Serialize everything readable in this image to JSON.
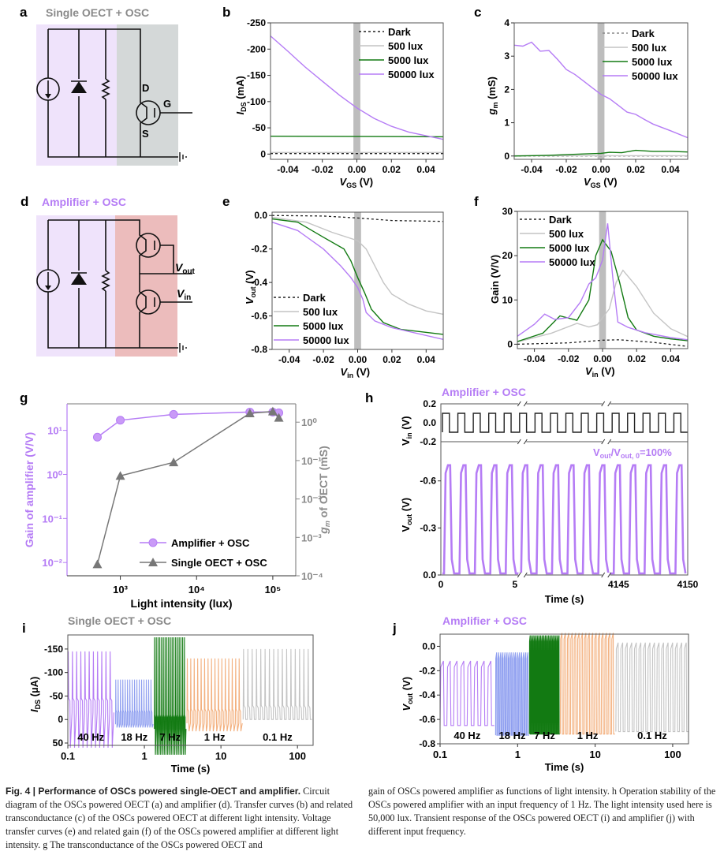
{
  "colors": {
    "dark": "#222222",
    "lux500": "#c4c4c4",
    "lux5000": "#127a12",
    "lux50000": "#b57cf5",
    "purple_text": "#b57cf5",
    "gray_text": "#8a8a8a",
    "osc_bg": "#efe3fb",
    "oect_bg": "#d4d8d8",
    "amp_bg": "#ecbcbc",
    "blue": "#8f9ff0",
    "orange": "#f3b07e",
    "shade": "#bdbdbd",
    "single_marker": "#777777"
  },
  "panels": {
    "a": {
      "label": "a",
      "title": "Single OECT + OSC",
      "pins": {
        "D": "D",
        "G": "G",
        "S": "S"
      }
    },
    "d": {
      "label": "d",
      "title": "Amplifier + OSC",
      "vout": "V",
      "vout_sub": "out",
      "vin": "V",
      "vin_sub": "in"
    }
  },
  "chart_data": [
    {
      "id": "b",
      "label": "b",
      "type": "line",
      "ylabel": "I",
      "ylabel_sub": "DS",
      "ylabel_unit": " (mA)",
      "xlabel": "V",
      "xlabel_sub": "GS",
      "xlabel_unit": " (V)",
      "xlim": [
        -0.05,
        0.05
      ],
      "ylim": [
        10,
        -250
      ],
      "y_inverted": true,
      "xticks": [
        "-0.04",
        "-0.02",
        "0.00",
        "0.02",
        "0.04"
      ],
      "xtick_values": [
        -0.04,
        -0.02,
        0,
        0.02,
        0.04
      ],
      "yticks": [
        "-250",
        "-200",
        "-150",
        "-100",
        "-50",
        "0"
      ],
      "ytick_values": [
        -250,
        -200,
        -150,
        -100,
        -50,
        0
      ],
      "shade_x": [
        -0.002,
        0.002
      ],
      "legend": "top-right",
      "series": [
        {
          "name": "Dark",
          "style": "dotted",
          "color_key": "dark",
          "x": [
            -0.05,
            0.05
          ],
          "y": [
            -1,
            -1
          ]
        },
        {
          "name": "500 lux",
          "style": "solid",
          "color_key": "lux500",
          "x": [
            -0.05,
            0.05
          ],
          "y": [
            -3,
            -3
          ]
        },
        {
          "name": "5000 lux",
          "style": "solid",
          "color_key": "lux5000",
          "x": [
            -0.05,
            0.05
          ],
          "y": [
            -34,
            -33
          ]
        },
        {
          "name": "50000 lux",
          "style": "solid",
          "color_key": "lux50000",
          "x": [
            -0.05,
            -0.04,
            -0.03,
            -0.02,
            -0.01,
            0,
            0.01,
            0.02,
            0.03,
            0.04,
            0.05
          ],
          "y": [
            -225,
            -196,
            -166,
            -139,
            -112,
            -88,
            -68,
            -53,
            -42,
            -35,
            -28
          ]
        }
      ]
    },
    {
      "id": "c",
      "label": "c",
      "type": "line",
      "ylabel": "g",
      "ylabel_sub": "m",
      "ylabel_unit": " (mS)",
      "xlabel": "V",
      "xlabel_sub": "GS",
      "xlabel_unit": " (V)",
      "xlim": [
        -0.05,
        0.05
      ],
      "ylim": [
        -0.1,
        4
      ],
      "xticks": [
        "-0.04",
        "-0.02",
        "0.00",
        "0.02",
        "0.04"
      ],
      "xtick_values": [
        -0.04,
        -0.02,
        0,
        0.02,
        0.04
      ],
      "yticks": [
        "0",
        "1",
        "2",
        "3",
        "4"
      ],
      "ytick_values": [
        0,
        1,
        2,
        3,
        4
      ],
      "shade_x": [
        -0.002,
        0.002
      ],
      "legend": "top-right",
      "series": [
        {
          "name": "Dark",
          "style": "dotted",
          "color_key": "gray_text",
          "x": [
            -0.05,
            0.05
          ],
          "y": [
            0,
            0
          ]
        },
        {
          "name": "500 lux",
          "style": "solid",
          "color_key": "lux500",
          "x": [
            -0.05,
            0.05
          ],
          "y": [
            0.01,
            0.01
          ]
        },
        {
          "name": "5000 lux",
          "style": "solid",
          "color_key": "lux5000",
          "x": [
            -0.05,
            -0.03,
            -0.01,
            0,
            0.005,
            0.012,
            0.02,
            0.03,
            0.04,
            0.05
          ],
          "y": [
            0.0,
            0.02,
            0.06,
            0.08,
            0.11,
            0.1,
            0.17,
            0.14,
            0.14,
            0.12
          ]
        },
        {
          "name": "50000 lux",
          "style": "solid",
          "color_key": "lux50000",
          "x": [
            -0.05,
            -0.045,
            -0.04,
            -0.035,
            -0.03,
            -0.025,
            -0.02,
            -0.015,
            -0.01,
            -0.005,
            0,
            0.005,
            0.01,
            0.015,
            0.02,
            0.025,
            0.03,
            0.04,
            0.05
          ],
          "y": [
            3.33,
            3.3,
            3.42,
            3.15,
            3.17,
            2.9,
            2.6,
            2.45,
            2.25,
            2.05,
            1.85,
            1.72,
            1.52,
            1.32,
            1.25,
            1.1,
            0.96,
            0.76,
            0.55
          ]
        }
      ]
    },
    {
      "id": "e",
      "label": "e",
      "type": "line",
      "ylabel": "V",
      "ylabel_sub": "out",
      "ylabel_unit": " (V)",
      "xlabel": "V",
      "xlabel_sub": "in",
      "xlabel_unit": " (V)",
      "xlim": [
        -0.05,
        0.05
      ],
      "ylim": [
        -0.8,
        0.02
      ],
      "xticks": [
        "-0.04",
        "-0.02",
        "0.00",
        "0.02",
        "0.04"
      ],
      "xtick_values": [
        -0.04,
        -0.02,
        0,
        0.02,
        0.04
      ],
      "yticks": [
        "0.0",
        "-0.2",
        "-0.4",
        "-0.6",
        "-0.8"
      ],
      "ytick_values": [
        0,
        -0.2,
        -0.4,
        -0.6,
        -0.8
      ],
      "shade_x": [
        -0.002,
        0.002
      ],
      "legend": "bottom-left",
      "series": [
        {
          "name": "Dark",
          "style": "dotted",
          "color_key": "dark",
          "x": [
            -0.05,
            -0.02,
            0,
            0.02,
            0.05
          ],
          "y": [
            0,
            -0.003,
            -0.015,
            -0.03,
            -0.035
          ]
        },
        {
          "name": "500 lux",
          "style": "solid",
          "color_key": "lux500",
          "x": [
            -0.05,
            -0.03,
            -0.015,
            0,
            0.005,
            0.01,
            0.015,
            0.02,
            0.03,
            0.04,
            0.05
          ],
          "y": [
            -0.01,
            -0.04,
            -0.1,
            -0.15,
            -0.2,
            -0.3,
            -0.4,
            -0.47,
            -0.53,
            -0.57,
            -0.59
          ]
        },
        {
          "name": "5000 lux",
          "style": "solid",
          "color_key": "lux5000",
          "x": [
            -0.05,
            -0.035,
            -0.02,
            -0.008,
            -0.004,
            0,
            0.004,
            0.008,
            0.015,
            0.025,
            0.05
          ],
          "y": [
            -0.02,
            -0.04,
            -0.13,
            -0.2,
            -0.27,
            -0.37,
            -0.46,
            -0.56,
            -0.64,
            -0.68,
            -0.71
          ]
        },
        {
          "name": "50000 lux",
          "style": "solid",
          "color_key": "lux50000",
          "x": [
            -0.05,
            -0.035,
            -0.02,
            -0.01,
            -0.004,
            0,
            0.003,
            0.005,
            0.01,
            0.02,
            0.05
          ],
          "y": [
            -0.04,
            -0.09,
            -0.2,
            -0.3,
            -0.37,
            -0.43,
            -0.5,
            -0.58,
            -0.63,
            -0.67,
            -0.74
          ]
        }
      ]
    },
    {
      "id": "f",
      "label": "f",
      "type": "line",
      "ylabel": "Gain (V/V)",
      "ylabel_sub": "",
      "ylabel_unit": "",
      "xlabel": "V",
      "xlabel_sub": "in",
      "xlabel_unit": " (V)",
      "xlim": [
        -0.05,
        0.05
      ],
      "ylim": [
        -1,
        30
      ],
      "xticks": [
        "-0.04",
        "-0.02",
        "0.00",
        "0.02",
        "0.04"
      ],
      "xtick_values": [
        -0.04,
        -0.02,
        0,
        0.02,
        0.04
      ],
      "yticks": [
        "0",
        "10",
        "20",
        "30"
      ],
      "ytick_values": [
        0,
        10,
        20,
        30
      ],
      "shade_x": [
        -0.002,
        0.002
      ],
      "legend": "top-left",
      "series": [
        {
          "name": "Dark",
          "style": "dotted",
          "color_key": "dark",
          "x": [
            -0.05,
            -0.02,
            0,
            0.01,
            0.03,
            0.05
          ],
          "y": [
            0,
            0.3,
            0.9,
            1.0,
            0.4,
            -0.5
          ]
        },
        {
          "name": "500 lux",
          "style": "solid",
          "color_key": "lux500",
          "x": [
            -0.05,
            -0.03,
            -0.015,
            -0.008,
            -0.003,
            0.004,
            0.008,
            0.012,
            0.02,
            0.03,
            0.04,
            0.05
          ],
          "y": [
            0.5,
            2.5,
            4.7,
            3.9,
            4.4,
            8,
            14,
            16.7,
            13,
            7,
            3.5,
            1.7
          ]
        },
        {
          "name": "5000 lux",
          "style": "solid",
          "color_key": "lux5000",
          "x": [
            -0.05,
            -0.035,
            -0.025,
            -0.015,
            -0.008,
            -0.004,
            0,
            0.005,
            0.01,
            0.015,
            0.02,
            0.03,
            0.04,
            0.05
          ],
          "y": [
            0.6,
            2.5,
            6.4,
            5.4,
            10,
            20,
            23.6,
            21,
            14,
            6,
            3.2,
            1.8,
            1.2,
            0.8
          ]
        },
        {
          "name": "50000 lux",
          "style": "solid",
          "color_key": "lux50000",
          "x": [
            -0.05,
            -0.04,
            -0.034,
            -0.028,
            -0.02,
            -0.013,
            -0.008,
            -0.004,
            0,
            0.003,
            0.006,
            0.009,
            0.015,
            0.025,
            0.04,
            0.05
          ],
          "y": [
            1.8,
            4.5,
            6.8,
            5.6,
            6,
            9.5,
            13.6,
            15,
            19,
            27.3,
            15,
            5,
            3.8,
            2.6,
            1.5,
            1
          ]
        }
      ]
    },
    {
      "id": "g",
      "label": "g",
      "type": "line",
      "xscale": "log",
      "yscale": "log",
      "xlabel": "Light intensity (lux)",
      "ylabel_left": "Gain of amplifier (V/V)",
      "ylabel_right_italic": "g",
      "ylabel_right_sub": "m",
      "ylabel_right": " of OECT (mS)",
      "xlim": [
        200,
        200000
      ],
      "ylim_left": [
        0.005,
        40
      ],
      "ylim_right": [
        0.0001,
        3
      ],
      "xticks": [
        "10³",
        "10⁴",
        "10⁵"
      ],
      "xtick_values": [
        1000,
        10000,
        100000
      ],
      "yticks_left": [
        "10¹",
        "10⁰",
        "10⁻¹",
        "10⁻²"
      ],
      "ytick_left_values": [
        10,
        1,
        0.1,
        0.01
      ],
      "yticks_right": [
        "10⁰",
        "10⁻¹",
        "10⁻²",
        "10⁻³",
        "10⁻⁴"
      ],
      "ytick_right_values": [
        1,
        0.1,
        0.01,
        0.001,
        0.0001
      ],
      "legend": "bottom-right",
      "series": [
        {
          "name": "Amplifier + OSC",
          "axis": "left",
          "marker": "circle",
          "color_key": "lux50000",
          "x": [
            500,
            1000,
            5000,
            50000,
            100000,
            120000
          ],
          "y": [
            7,
            17,
            23,
            26,
            26,
            25
          ]
        },
        {
          "name": "Single OECT + OSC",
          "axis": "right",
          "marker": "triangle",
          "color_key": "single_marker",
          "x": [
            500,
            1000,
            5000,
            50000,
            100000,
            120000
          ],
          "y": [
            0.0002,
            0.04,
            0.09,
            1.7,
            1.9,
            1.3
          ]
        }
      ]
    },
    {
      "id": "h",
      "label": "h",
      "type": "line",
      "title": "Amplifier + OSC",
      "annotation": "V",
      "annotation_sub1": "out",
      "annotation_mid": "/V",
      "annotation_sub2": "out, 0",
      "annotation_tail": "=100%",
      "top": {
        "ylabel": "V",
        "ylabel_sub": "in",
        "ylabel_unit": " (V)",
        "yticks": [
          "0.2",
          "0.0",
          "-0.2"
        ],
        "ytick_values": [
          0.2,
          0,
          -0.2
        ],
        "ylim": [
          -0.2,
          0.2
        ],
        "high": 0.1,
        "low": -0.1
      },
      "bottom": {
        "ylabel": "V",
        "ylabel_sub": "out",
        "ylabel_unit": " (V)",
        "yticks": [
          "-0.6",
          "-0.3",
          "0.0"
        ],
        "ytick_values": [
          -0.6,
          -0.3,
          0
        ],
        "ylim": [
          0,
          -0.85
        ],
        "high": -0.7,
        "low": -0.01
      },
      "xlabel": "Time (s)",
      "xticks": [
        "0",
        "5",
        "4145",
        "4150"
      ],
      "frequency_hz": 1,
      "cycles": 16
    },
    {
      "id": "i",
      "label": "i",
      "type": "line",
      "title": "Single OECT + OSC",
      "xscale": "log",
      "xlim": [
        0.1,
        160
      ],
      "ylim": [
        55,
        -180
      ],
      "ylabel": "I",
      "ylabel_sub": "DS",
      "ylabel_unit": " (µA)",
      "xlabel": "Time (s)",
      "xticks": [
        "0.1",
        "1",
        "10",
        "100"
      ],
      "xtick_values": [
        0.1,
        1,
        10,
        100
      ],
      "yticks": [
        "-150",
        "-100",
        "-50",
        "0",
        "50"
      ],
      "ytick_values": [
        -150,
        -100,
        -50,
        0,
        50
      ],
      "segments": [
        {
          "name": "40 Hz",
          "color_key": "lux50000",
          "t": [
            0.1,
            0.4
          ],
          "peak": -145,
          "trough": 60,
          "base": -15,
          "n": 11
        },
        {
          "name": "18 Hz",
          "color_key": "blue",
          "t": [
            0.42,
            1.3
          ],
          "peak": -85,
          "trough": 17,
          "base": 10,
          "n": 16
        },
        {
          "name": "7 Hz",
          "color_key": "lux5000",
          "t": [
            1.35,
            3.5
          ],
          "peak": -175,
          "trough": 75,
          "base": 20,
          "n": 18
        },
        {
          "name": "1 Hz",
          "color_key": "orange",
          "t": [
            3.6,
            19
          ],
          "peak": -130,
          "trough": 25,
          "base": 8,
          "n": 16
        },
        {
          "name": "0.1 Hz",
          "color_key": "lux500",
          "t": [
            19.5,
            155
          ],
          "peak": -150,
          "trough": 0,
          "base": 0,
          "n": 16
        }
      ]
    },
    {
      "id": "j",
      "label": "j",
      "type": "line",
      "title": "Amplifier + OSC",
      "xscale": "log",
      "xlim": [
        0.1,
        160
      ],
      "ylim": [
        -0.8,
        0.1
      ],
      "ylabel": "V",
      "ylabel_sub": "out",
      "ylabel_unit": " (V)",
      "xlabel": "Time (s)",
      "xticks": [
        "0.1",
        "1",
        "10",
        "100"
      ],
      "xtick_values": [
        0.1,
        1,
        10,
        100
      ],
      "yticks": [
        "0.0",
        "-0.2",
        "-0.4",
        "-0.6",
        "-0.8"
      ],
      "ytick_values": [
        0,
        -0.2,
        -0.4,
        -0.6,
        -0.8
      ],
      "segments": [
        {
          "name": "40 Hz",
          "color_key": "lux50000",
          "t": [
            0.1,
            0.5
          ],
          "high": -0.17,
          "low": -0.65,
          "n": 8
        },
        {
          "name": "18 Hz",
          "color_key": "blue",
          "t": [
            0.52,
            1.4
          ],
          "high": -0.1,
          "low": -0.73,
          "n": 16
        },
        {
          "name": "7 Hz",
          "color_key": "lux5000",
          "t": [
            1.42,
            3.5
          ],
          "high": 0.04,
          "low": -0.72,
          "n": 20
        },
        {
          "name": "1 Hz",
          "color_key": "orange",
          "t": [
            3.55,
            18
          ],
          "high": 0.06,
          "low": -0.72,
          "n": 16
        },
        {
          "name": "0.1 Hz",
          "color_key": "lux500",
          "t": [
            18.5,
            160
          ],
          "high": -0.02,
          "low": -0.7,
          "n": 16
        }
      ]
    }
  ],
  "caption": {
    "fig_label": "Fig. 4 | Performance of OSCs powered single-OECT and amplifier.",
    "left": " Circuit diagram of the OSCs powered OECT (a) and amplifier (d). Transfer curves (b) and related transconductance (c) of the OSCs powered OECT at different light intensity. Voltage transfer curves (e) and related gain (f) of the OSCs powered amplifier at different light intensity. g The transconductance of the OSCs powered OECT and",
    "right": "gain of OSCs powered amplifier as functions of light intensity. h Operation stability of the OSCs powered amplifier with an input frequency of 1 Hz. The light intensity used here is 50,000 lux. Transient response of the OSCs powered OECT (i) and amplifier (j) with different input frequency."
  }
}
